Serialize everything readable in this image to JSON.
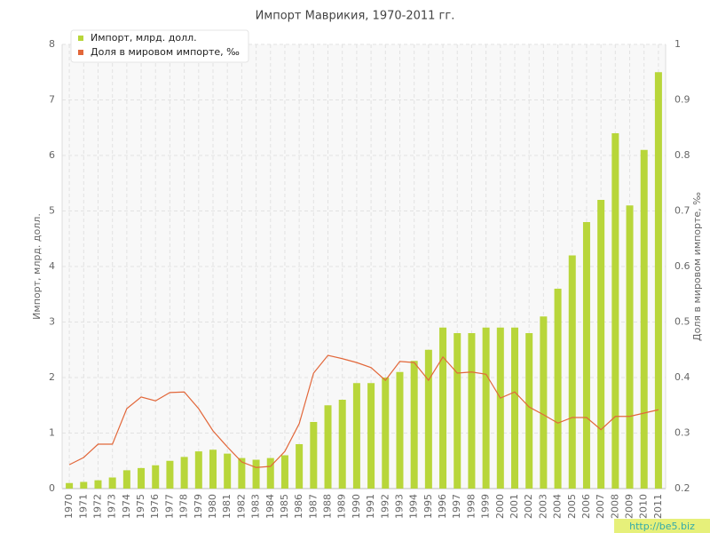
{
  "chart_data": {
    "type": "bar-line",
    "title": "Импорт Маврикия, 1970-2011 гг.",
    "y_label": "Импорт, млрд. долл.",
    "y2_label": "Доля в мировом импорте, ‰",
    "watermark": "http://be5.biz",
    "categories": [
      "1970",
      "1971",
      "1972",
      "1973",
      "1974",
      "1975",
      "1976",
      "1977",
      "1978",
      "1979",
      "1980",
      "1981",
      "1982",
      "1983",
      "1984",
      "1985",
      "1986",
      "1987",
      "1988",
      "1989",
      "1990",
      "1991",
      "1992",
      "1993",
      "1994",
      "1995",
      "1996",
      "1997",
      "1998",
      "1999",
      "2000",
      "2001",
      "2002",
      "2003",
      "2004",
      "2005",
      "2006",
      "2007",
      "2008",
      "2009",
      "2010",
      "2011"
    ],
    "series": [
      {
        "name": "Импорт, млрд. долл.",
        "color": "#b8d63a",
        "type": "bar",
        "values": [
          0.1,
          0.12,
          0.15,
          0.2,
          0.33,
          0.37,
          0.42,
          0.5,
          0.57,
          0.67,
          0.7,
          0.63,
          0.55,
          0.52,
          0.55,
          0.6,
          0.8,
          1.2,
          1.5,
          1.6,
          1.9,
          1.9,
          2.0,
          2.1,
          2.3,
          2.5,
          2.9,
          2.8,
          2.8,
          2.9,
          2.9,
          2.9,
          2.8,
          3.1,
          3.6,
          4.2,
          4.8,
          5.2,
          6.4,
          5.1,
          6.1,
          7.5
        ]
      },
      {
        "name": "Доля в мировом импорте, ‰",
        "color": "#e2673a",
        "type": "line",
        "axis": "y2",
        "values": [
          0.243,
          0.256,
          0.28,
          0.28,
          0.344,
          0.365,
          0.358,
          0.373,
          0.374,
          0.344,
          0.304,
          0.275,
          0.248,
          0.238,
          0.24,
          0.267,
          0.317,
          0.408,
          0.44,
          0.434,
          0.427,
          0.418,
          0.395,
          0.429,
          0.427,
          0.395,
          0.437,
          0.408,
          0.41,
          0.406,
          0.363,
          0.374,
          0.347,
          0.333,
          0.318,
          0.328,
          0.328,
          0.306,
          0.33,
          0.33,
          0.336,
          0.342
        ]
      }
    ],
    "ylim": [
      0,
      8
    ],
    "yticks": [
      0,
      1,
      2,
      3,
      4,
      5,
      6,
      7,
      8
    ],
    "y2lim": [
      0.2,
      1
    ],
    "y2ticks": [
      0.2,
      0.3,
      0.4,
      0.5,
      0.6,
      0.7,
      0.8,
      0.9,
      1
    ],
    "grid": true,
    "legend": "top-left"
  }
}
